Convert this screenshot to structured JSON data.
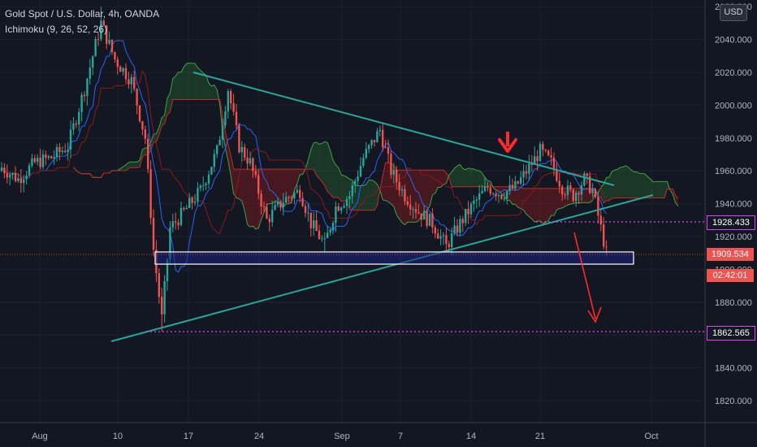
{
  "legend": {
    "symbol": "Gold Spot / U.S. Dollar, 4h, OANDA",
    "indicator": "Ichimoku (9, 26, 52, 26)"
  },
  "currency": "USD",
  "price_tags": {
    "resistance_level": "1928.433",
    "current_price": "1909.534",
    "countdown": "02:42:01",
    "target_level": "1862.565"
  },
  "colors": {
    "background": "#131722",
    "bull": "#26a69a",
    "bear": "#ef5350",
    "trendline": "#26a69a",
    "dotted": "#e040fb",
    "arrow": "#ff2a2a",
    "box_border": "#ffffff",
    "box_fill": "#1a237e",
    "kumo_bull": "#2e7d32",
    "kumo_bear": "#b71c1c",
    "tenkan": "#2962ff",
    "kijun": "#8b1a1a"
  },
  "chart_data": {
    "type": "candlestick",
    "title": "Gold Spot / U.S. Dollar, 4h, OANDA",
    "indicator": "Ichimoku (9, 26, 52, 26)",
    "ylim": [
      1810,
      2060
    ],
    "y_ticks": [
      1820,
      1840,
      1860,
      1880,
      1900,
      1920,
      1940,
      1960,
      1980,
      2000,
      2020,
      2040,
      2060
    ],
    "x_ticks": [
      "Aug",
      "10",
      "17",
      "24",
      "Sep",
      "7",
      "14",
      "21",
      "Oct"
    ],
    "price_path": [
      {
        "bar": 0,
        "price": 1962
      },
      {
        "bar": 6,
        "price": 1955
      },
      {
        "bar": 12,
        "price": 1965
      },
      {
        "bar": 18,
        "price": 1968
      },
      {
        "bar": 24,
        "price": 1975
      },
      {
        "bar": 30,
        "price": 2010
      },
      {
        "bar": 36,
        "price": 2050
      },
      {
        "bar": 41,
        "price": 2028
      },
      {
        "bar": 47,
        "price": 2015
      },
      {
        "bar": 52,
        "price": 1980
      },
      {
        "bar": 55,
        "price": 1912
      },
      {
        "bar": 58,
        "price": 1870
      },
      {
        "bar": 61,
        "price": 1925
      },
      {
        "bar": 66,
        "price": 1935
      },
      {
        "bar": 72,
        "price": 1948
      },
      {
        "bar": 78,
        "price": 1972
      },
      {
        "bar": 82,
        "price": 2010
      },
      {
        "bar": 86,
        "price": 1975
      },
      {
        "bar": 90,
        "price": 1965
      },
      {
        "bar": 96,
        "price": 1930
      },
      {
        "bar": 102,
        "price": 1942
      },
      {
        "bar": 108,
        "price": 1948
      },
      {
        "bar": 112,
        "price": 1928
      },
      {
        "bar": 117,
        "price": 1915
      },
      {
        "bar": 121,
        "price": 1938
      },
      {
        "bar": 126,
        "price": 1945
      },
      {
        "bar": 131,
        "price": 1968
      },
      {
        "bar": 137,
        "price": 1985
      },
      {
        "bar": 141,
        "price": 1960
      },
      {
        "bar": 146,
        "price": 1945
      },
      {
        "bar": 151,
        "price": 1935
      },
      {
        "bar": 156,
        "price": 1928
      },
      {
        "bar": 161,
        "price": 1914
      },
      {
        "bar": 166,
        "price": 1928
      },
      {
        "bar": 171,
        "price": 1940
      },
      {
        "bar": 176,
        "price": 1950
      },
      {
        "bar": 181,
        "price": 1946
      },
      {
        "bar": 186,
        "price": 1950
      },
      {
        "bar": 191,
        "price": 1962
      },
      {
        "bar": 195,
        "price": 1972
      },
      {
        "bar": 199,
        "price": 1965
      },
      {
        "bar": 203,
        "price": 1950
      },
      {
        "bar": 207,
        "price": 1945
      },
      {
        "bar": 211,
        "price": 1955
      },
      {
        "bar": 214,
        "price": 1948
      },
      {
        "bar": 217,
        "price": 1925
      },
      {
        "bar": 219,
        "price": 1910
      }
    ],
    "trendlines": [
      {
        "name": "upper-trendline",
        "points": [
          [
            "Aug 14",
            2020
          ],
          [
            "Sep 27",
            1951
          ]
        ]
      },
      {
        "name": "lower-trendline",
        "points": [
          [
            "Aug 11",
            1843
          ],
          [
            "Sep 29",
            1945
          ]
        ]
      }
    ],
    "horizontal_levels": [
      1928.433,
      1909.534,
      1862.565
    ],
    "support_zone": [
      1904,
      1911
    ]
  }
}
